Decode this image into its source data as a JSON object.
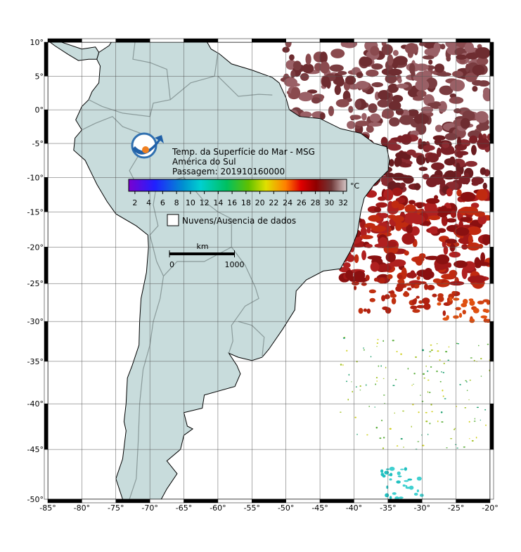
{
  "map": {
    "title_lines": [
      "Temp. da Superfície do Mar - MSG",
      "América do Sul",
      "Passagem: 201910160000"
    ],
    "xlim": [
      -85,
      -20
    ],
    "ylim": [
      -50,
      10
    ],
    "xticks": [
      {
        "value": -85,
        "label": "-85°"
      },
      {
        "value": -80,
        "label": "-80°"
      },
      {
        "value": -75,
        "label": "-75°"
      },
      {
        "value": -70,
        "label": "-70°"
      },
      {
        "value": -65,
        "label": "-65°"
      },
      {
        "value": -60,
        "label": "-60°"
      },
      {
        "value": -55,
        "label": "-55°"
      },
      {
        "value": -50,
        "label": "-50°"
      },
      {
        "value": -45,
        "label": "-45°"
      },
      {
        "value": -40,
        "label": "-40°"
      },
      {
        "value": -35,
        "label": "-35°"
      },
      {
        "value": -30,
        "label": "-30°"
      },
      {
        "value": -25,
        "label": "-25°"
      },
      {
        "value": -20,
        "label": "-20°"
      }
    ],
    "yticks": [
      {
        "value": 10,
        "label": "10°"
      },
      {
        "value": 5,
        "label": "5°"
      },
      {
        "value": 0,
        "label": "0°"
      },
      {
        "value": -5,
        "label": "-5°"
      },
      {
        "value": -10,
        "label": "-10°"
      },
      {
        "value": -15,
        "label": "-15°"
      },
      {
        "value": -20,
        "label": "-20°"
      },
      {
        "value": -25,
        "label": "-25°"
      },
      {
        "value": -30,
        "label": "-30°"
      },
      {
        "value": -35,
        "label": "-35°"
      },
      {
        "value": -40,
        "label": "-40°"
      },
      {
        "value": -45,
        "label": "-45°"
      },
      {
        "value": -50,
        "label": "-50°"
      }
    ],
    "colorbar": {
      "ticks": [
        2,
        4,
        6,
        8,
        10,
        12,
        14,
        16,
        18,
        20,
        22,
        24,
        26,
        28,
        30,
        32
      ],
      "unit": "°C"
    },
    "legend": {
      "label": "Nuvens/Ausencia de dados"
    },
    "scale_bar": {
      "unit": "km",
      "ticks": [
        0,
        1000
      ]
    }
  }
}
